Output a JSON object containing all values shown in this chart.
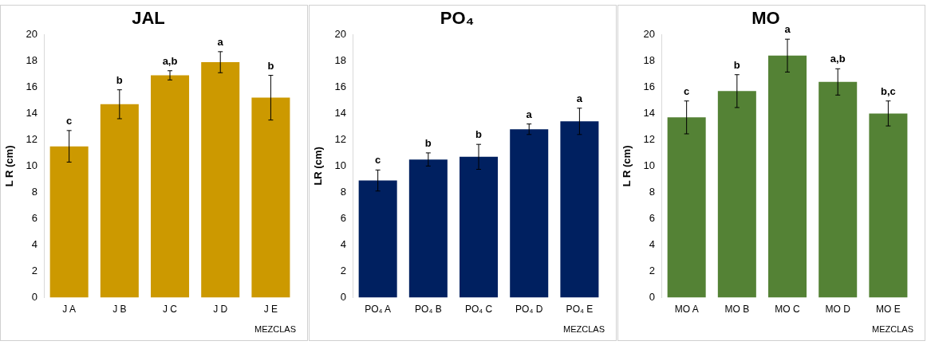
{
  "chart_data": [
    {
      "type": "bar",
      "title": "JAL",
      "xlabel": "MEZCLAS",
      "ylabel": "L R (cm)",
      "categories": [
        "J A",
        "J B",
        "J C",
        "J D",
        "J E"
      ],
      "values": [
        11.5,
        14.7,
        16.9,
        17.9,
        15.2
      ],
      "errors": [
        1.2,
        1.1,
        0.35,
        0.8,
        1.7
      ],
      "color": "#cc9900",
      "ylim": [
        0,
        20
      ],
      "yticks": [
        0,
        2,
        4,
        6,
        8,
        10,
        12,
        14,
        16,
        18,
        20
      ],
      "grid": false,
      "legend": false,
      "annotations": [
        {
          "text": "c",
          "x": "J A",
          "y": 12.7
        },
        {
          "text": "b",
          "x": "J B",
          "y": 15.8
        },
        {
          "text": "a,b",
          "x": "J C",
          "y": 17.25
        },
        {
          "text": "a",
          "x": "J D",
          "y": 18.7
        },
        {
          "text": "b",
          "x": "J E",
          "y": 16.9
        }
      ]
    },
    {
      "type": "bar",
      "title": "PO₄",
      "xlabel": "MEZCLAS",
      "ylabel": "LR (cm)",
      "categories": [
        "PO₄ A",
        "PO₄ B",
        "PO₄ C",
        "PO₄ D",
        "PO₄ E"
      ],
      "values": [
        8.9,
        10.5,
        10.7,
        12.8,
        13.4
      ],
      "errors": [
        0.8,
        0.5,
        0.95,
        0.4,
        1.0
      ],
      "color": "#002060",
      "ylim": [
        0,
        20
      ],
      "yticks": [
        0,
        2,
        4,
        6,
        8,
        10,
        12,
        14,
        16,
        18,
        20
      ],
      "grid": false,
      "legend": false,
      "annotations": [
        {
          "text": "c",
          "x": "PO₄ A",
          "y": 9.7
        },
        {
          "text": "b",
          "x": "PO₄ B",
          "y": 11.0
        },
        {
          "text": "b",
          "x": "PO₄ C",
          "y": 11.65
        },
        {
          "text": "a",
          "x": "PO₄ D",
          "y": 13.2
        },
        {
          "text": "a",
          "x": "PO₄ E",
          "y": 14.4
        }
      ]
    },
    {
      "type": "bar",
      "title": "MO",
      "xlabel": "MEZCLAS",
      "ylabel": "L R (cm)",
      "categories": [
        "MO A",
        "MO B",
        "MO C",
        "MO D",
        "MO E"
      ],
      "values": [
        13.7,
        15.7,
        18.4,
        16.4,
        14.0
      ],
      "errors": [
        1.25,
        1.25,
        1.25,
        1.0,
        0.95
      ],
      "color": "#548235",
      "ylim": [
        0,
        20
      ],
      "yticks": [
        0,
        2,
        4,
        6,
        8,
        10,
        12,
        14,
        16,
        18,
        20
      ],
      "grid": false,
      "legend": false,
      "annotations": [
        {
          "text": "c",
          "x": "MO A",
          "y": 14.95
        },
        {
          "text": "b",
          "x": "MO B",
          "y": 16.95
        },
        {
          "text": "a",
          "x": "MO C",
          "y": 19.65
        },
        {
          "text": "a,b",
          "x": "MO D",
          "y": 17.4
        },
        {
          "text": "b,c",
          "x": "MO E",
          "y": 14.95
        }
      ]
    }
  ]
}
